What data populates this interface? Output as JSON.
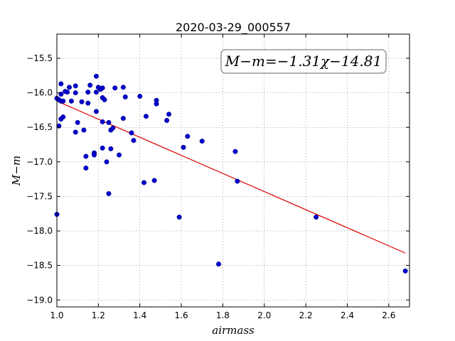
{
  "chart_data": {
    "type": "scatter",
    "title": "2020-03-29_000557",
    "xlabel": "airmass",
    "ylabel": "M−m",
    "annotation": "M−m=−1.31χ−14.81",
    "xlim": [
      1.0,
      2.7
    ],
    "ylim": [
      -19.1,
      -15.15
    ],
    "x_ticks": [
      "1.0",
      "1.2",
      "1.4",
      "1.6",
      "1.8",
      "2.0",
      "2.2",
      "2.4",
      "2.6"
    ],
    "y_ticks": [
      "−15.5",
      "−16.0",
      "−16.5",
      "−17.0",
      "−17.5",
      "−18.0",
      "−18.5",
      "−19.0"
    ],
    "grid": true,
    "colors": {
      "points": "#0000cc",
      "fit": "#dd0000"
    },
    "fit": {
      "slope": -1.31,
      "intercept": -14.81
    },
    "points": [
      [
        1.0,
        -16.08
      ],
      [
        1.0,
        -17.76
      ],
      [
        1.01,
        -16.48
      ],
      [
        1.01,
        -16.1
      ],
      [
        1.02,
        -16.02
      ],
      [
        1.02,
        -16.12
      ],
      [
        1.02,
        -16.38
      ],
      [
        1.02,
        -15.87
      ],
      [
        1.03,
        -16.12
      ],
      [
        1.03,
        -16.35
      ],
      [
        1.04,
        -15.98
      ],
      [
        1.05,
        -15.99
      ],
      [
        1.06,
        -15.92
      ],
      [
        1.07,
        -16.12
      ],
      [
        1.09,
        -15.9
      ],
      [
        1.09,
        -16.0
      ],
      [
        1.09,
        -16.57
      ],
      [
        1.1,
        -16.43
      ],
      [
        1.12,
        -16.13
      ],
      [
        1.13,
        -16.54
      ],
      [
        1.14,
        -16.92
      ],
      [
        1.14,
        -17.09
      ],
      [
        1.15,
        -15.99
      ],
      [
        1.15,
        -16.15
      ],
      [
        1.16,
        -15.89
      ],
      [
        1.18,
        -16.87
      ],
      [
        1.18,
        -16.9
      ],
      [
        1.19,
        -16.27
      ],
      [
        1.19,
        -15.76
      ],
      [
        1.19,
        -15.99
      ],
      [
        1.2,
        -15.92
      ],
      [
        1.21,
        -15.95
      ],
      [
        1.22,
        -15.93
      ],
      [
        1.22,
        -16.07
      ],
      [
        1.22,
        -16.42
      ],
      [
        1.22,
        -16.8
      ],
      [
        1.23,
        -16.1
      ],
      [
        1.24,
        -17.0
      ],
      [
        1.25,
        -16.43
      ],
      [
        1.25,
        -17.46
      ],
      [
        1.26,
        -16.54
      ],
      [
        1.26,
        -16.81
      ],
      [
        1.27,
        -16.51
      ],
      [
        1.28,
        -15.93
      ],
      [
        1.3,
        -16.9
      ],
      [
        1.32,
        -15.92
      ],
      [
        1.32,
        -16.37
      ],
      [
        1.33,
        -16.06
      ],
      [
        1.36,
        -16.58
      ],
      [
        1.37,
        -16.69
      ],
      [
        1.4,
        -16.05
      ],
      [
        1.42,
        -17.3
      ],
      [
        1.43,
        -16.34
      ],
      [
        1.47,
        -17.27
      ],
      [
        1.48,
        -16.11
      ],
      [
        1.48,
        -16.16
      ],
      [
        1.53,
        -16.4
      ],
      [
        1.54,
        -16.31
      ],
      [
        1.59,
        -17.8
      ],
      [
        1.61,
        -16.79
      ],
      [
        1.63,
        -16.63
      ],
      [
        1.7,
        -16.7
      ],
      [
        1.78,
        -18.48
      ],
      [
        1.86,
        -16.85
      ],
      [
        1.87,
        -17.28
      ],
      [
        2.25,
        -17.8
      ],
      [
        2.68,
        -18.58
      ]
    ]
  }
}
